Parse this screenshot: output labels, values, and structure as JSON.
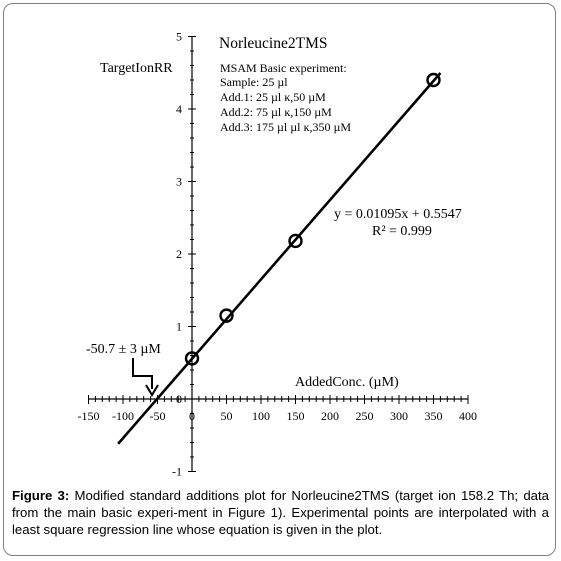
{
  "chart_data": {
    "type": "scatter",
    "title": "Norleucine2TMS",
    "xlabel": "AddedConc. (µM)",
    "ylabel": "TargetIonRR",
    "xlim": [
      -150,
      400
    ],
    "ylim": [
      -1,
      5
    ],
    "x_ticks": [
      "-150",
      "-100",
      "-50",
      "0",
      "50",
      "100",
      "150",
      "200",
      "250",
      "300",
      "350",
      "400"
    ],
    "y_ticks": [
      "-1",
      "0",
      "1",
      "2",
      "3",
      "4",
      "5"
    ],
    "points": [
      {
        "x": 0,
        "y": 0.56
      },
      {
        "x": 50,
        "y": 1.15
      },
      {
        "x": 150,
        "y": 2.18
      },
      {
        "x": 350,
        "y": 4.4
      }
    ],
    "fit": {
      "slope": 0.01095,
      "intercept": 0.5547,
      "x_range": [
        -107,
        360
      ],
      "equation": "y = 0.01095x + 0.5547",
      "r2": "R² = 0.999"
    },
    "info_lines": [
      "MSAM  Basic experiment:",
      "Sample:  25 µl",
      "Add.1: 25 µl ĸ,50 µM",
      "Add.2: 75 µl ĸ,150 µM",
      "Add.3: 175 µl µl ĸ,350 µM"
    ],
    "annotation": "-50.7 ± 3  µM",
    "grid": false
  },
  "caption": {
    "label": "Figure 3:",
    "text": " Modified standard additions plot for Norleucine2TMS (target ion 158.2 Th; data from the main basic experi-ment in Figure 1). Experimental points are interpolated with a least square regression line whose equation is given in the plot."
  }
}
